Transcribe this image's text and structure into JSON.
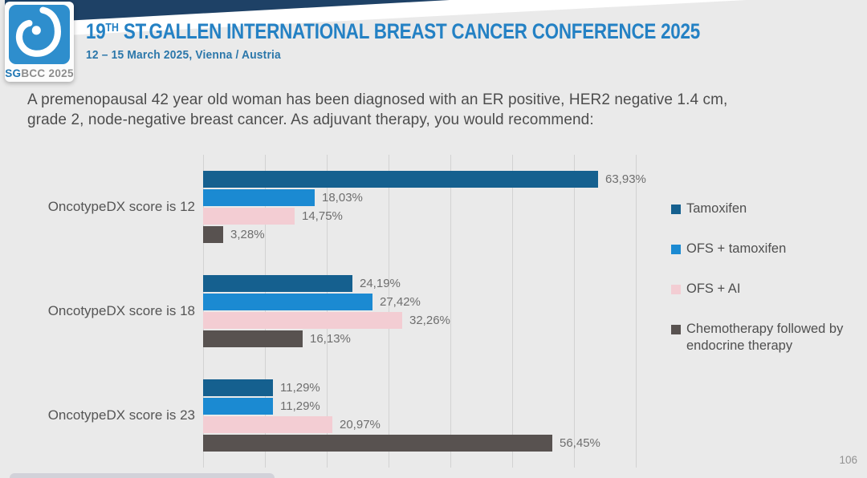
{
  "header": {
    "logo": {
      "sg": "SG",
      "rest": "BCC 2025",
      "glyph": "sgbcc-breast-logo"
    },
    "title_num": "19",
    "title_sup": "TH",
    "title_rest": " ST.GALLEN INTERNATIONAL BREAST CANCER CONFERENCE 2025",
    "subtitle": "12 – 15 March 2025, Vienna / Austria",
    "title_color": "#2481c4",
    "band_color": "#1e4166"
  },
  "question": "A premenopausal 42 year old woman has been diagnosed with an ER positive, HER2 negative 1.4 cm, grade 2, node-negative breast cancer. As adjuvant therapy, you would recommend:",
  "chart_data": {
    "type": "bar",
    "orientation": "horizontal",
    "categories": [
      "OncotypeDX score is 12",
      "OncotypeDX score is 18",
      "OncotypeDX score is 23"
    ],
    "series": [
      {
        "name": "Tamoxifen",
        "color": "#15608f",
        "values": [
          63.93,
          24.19,
          11.29
        ],
        "labels": [
          "63,93%",
          "24,19%",
          "11,29%"
        ]
      },
      {
        "name": "OFS + tamoxifen",
        "color": "#1b8ad2",
        "values": [
          18.03,
          27.42,
          11.29
        ],
        "labels": [
          "18,03%",
          "27,42%",
          "11,29%"
        ]
      },
      {
        "name": "OFS + AI",
        "color": "#f3cdd3",
        "values": [
          14.75,
          32.26,
          20.97
        ],
        "labels": [
          "14,75%",
          "32,26%",
          "20,97%"
        ]
      },
      {
        "name": "Chemotherapy followed by endocrine therapy",
        "color": "#585250",
        "values": [
          3.28,
          16.13,
          56.45
        ],
        "labels": [
          "3,28%",
          "16,13%",
          "56,45%"
        ]
      }
    ],
    "xlim": [
      0,
      70
    ],
    "gridline_step_pct": 10,
    "grid": true,
    "legend_position": "right",
    "value_label_format": "comma-decimal-percent"
  },
  "footer": {
    "page_number": "106"
  }
}
